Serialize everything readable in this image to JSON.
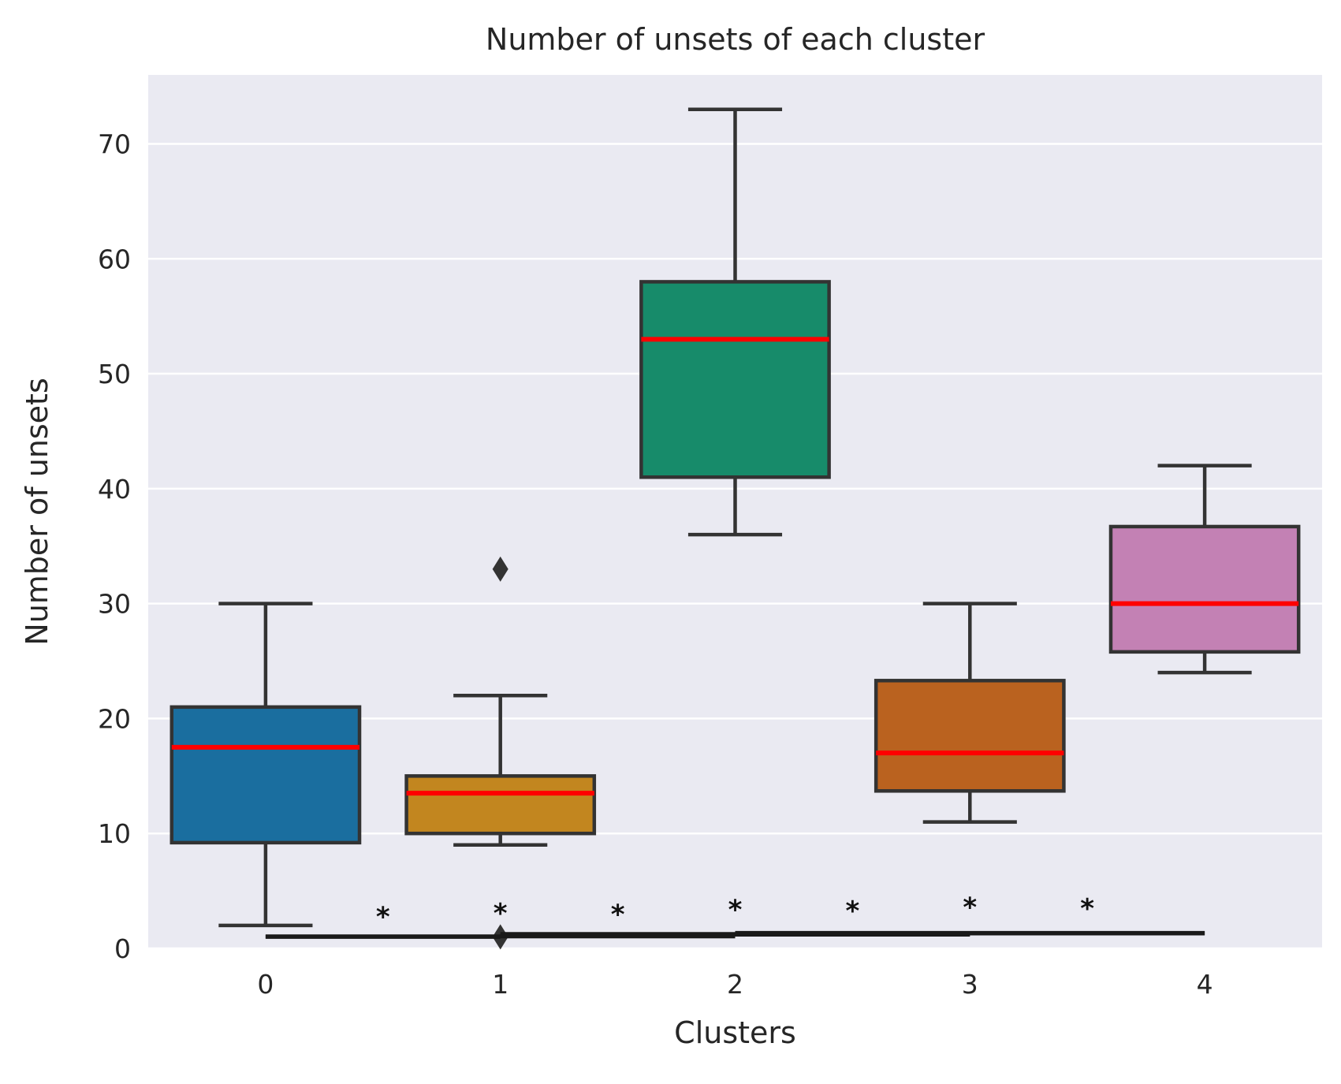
{
  "chart_data": {
    "type": "box",
    "title": "Number of unsets of each cluster",
    "xlabel": "Clusters",
    "ylabel": "Number of unsets",
    "categories": [
      "0",
      "1",
      "2",
      "3",
      "4"
    ],
    "ylim": [
      0,
      76
    ],
    "yticks": [
      "0",
      "10",
      "20",
      "30",
      "40",
      "50",
      "60",
      "70"
    ],
    "grid": true,
    "colors": {
      "background": "#eaeaf2",
      "grid": "#ffffff",
      "box_edge": "#333333",
      "median": "#ff0000",
      "boxes": [
        "#1a6e9f",
        "#c2861f",
        "#178b6a",
        "#ba621f",
        "#c381b4"
      ]
    },
    "boxes": [
      {
        "category": "0",
        "whisker_low": 2,
        "q1": 9.2,
        "median": 17.5,
        "q3": 21,
        "whisker_high": 30,
        "outliers": []
      },
      {
        "category": "1",
        "whisker_low": 9,
        "q1": 10,
        "median": 13.5,
        "q3": 15,
        "whisker_high": 22,
        "outliers": [
          33,
          1
        ]
      },
      {
        "category": "2",
        "whisker_low": 36,
        "q1": 41,
        "median": 53,
        "q3": 58,
        "whisker_high": 73,
        "outliers": []
      },
      {
        "category": "3",
        "whisker_low": 11,
        "q1": 13.7,
        "median": 17,
        "q3": 23.3,
        "whisker_high": 30,
        "outliers": []
      },
      {
        "category": "4",
        "whisker_low": 24,
        "q1": 25.8,
        "median": 30,
        "q3": 36.7,
        "whisker_high": 42,
        "outliers": []
      }
    ],
    "significance": [
      {
        "from": "0",
        "to": "1",
        "label": "*",
        "bar_y": 1.0,
        "label_y": 3.2
      },
      {
        "from": "1",
        "to": "2",
        "label": "*",
        "bar_y": 1.1,
        "label_y": 3.4
      },
      {
        "from": "0",
        "to": "2",
        "label": "*",
        "bar_y": 1.05,
        "label_y": 3.5
      },
      {
        "from": "2",
        "to": "3",
        "label": "*",
        "bar_y": 1.2,
        "label_y": 3.7
      },
      {
        "from": "1",
        "to": "3",
        "label": "*",
        "bar_y": 1.25,
        "label_y": 3.8
      },
      {
        "from": "3",
        "to": "4",
        "label": "*",
        "bar_y": 1.3,
        "label_y": 3.9
      },
      {
        "from": "2",
        "to": "4",
        "label": "*",
        "bar_y": 1.35,
        "label_y": 4.0
      }
    ]
  }
}
